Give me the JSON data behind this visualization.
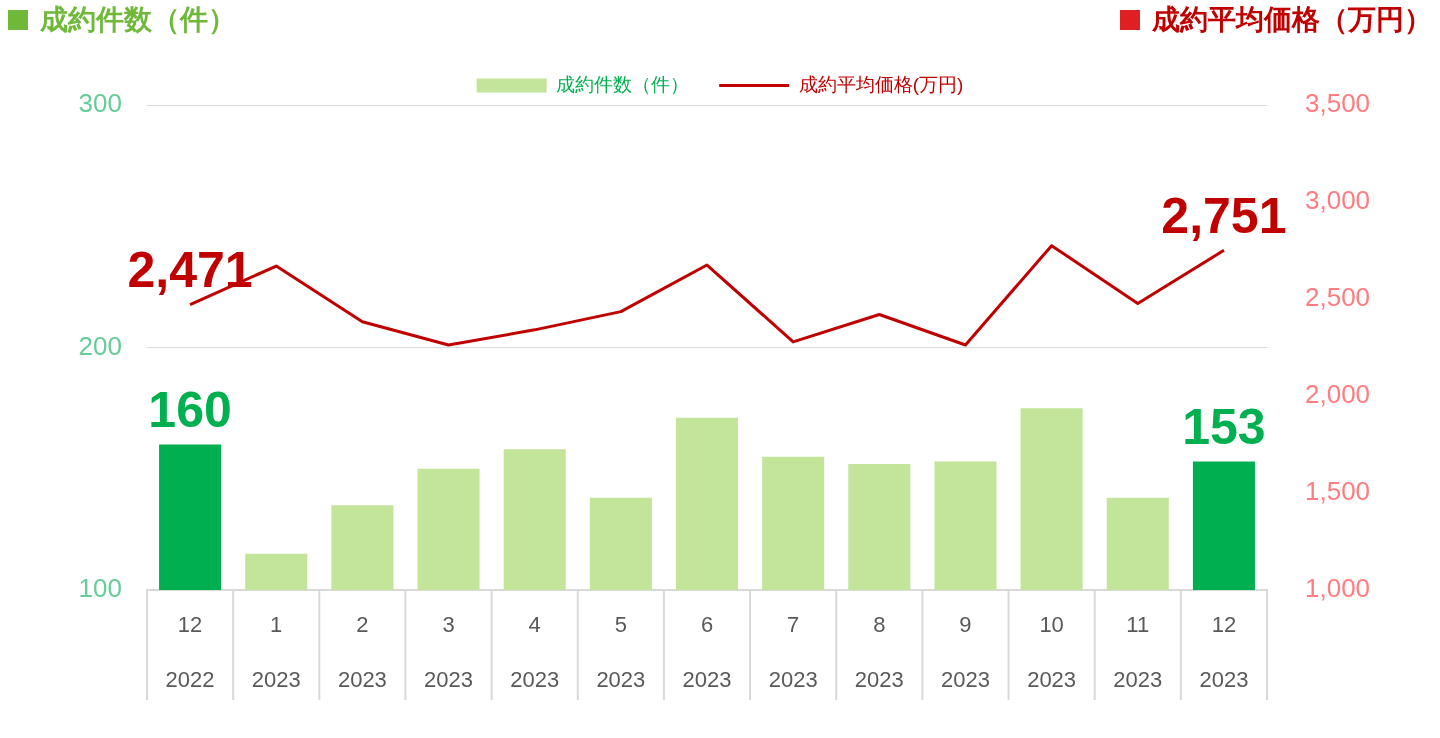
{
  "chart_data": {
    "type": "bar",
    "ylabel": "成約件数（件）",
    "y2label": "成約平均価格（万円）",
    "categories": [
      "12\n2022",
      "1\n2023",
      "2\n2023",
      "3\n2023",
      "4\n2023",
      "5\n2023",
      "6\n2023",
      "7\n2023",
      "8\n2023",
      "9\n2023",
      "10\n2023",
      "11\n2023",
      "12\n2023"
    ],
    "series": [
      {
        "name": "成約件数（件）",
        "color": "#c2e59a",
        "colors": [
          "#00b050",
          "#c2e59a",
          "#c2e59a",
          "#c2e59a",
          "#c2e59a",
          "#c2e59a",
          "#c2e59a",
          "#c2e59a",
          "#c2e59a",
          "#c2e59a",
          "#c2e59a",
          "#c2e59a",
          "#00b050"
        ],
        "values": [
          160,
          115,
          135,
          150,
          158,
          138,
          171,
          155,
          152,
          153,
          175,
          138,
          153
        ],
        "value_labels": [
          "160",
          null,
          null,
          null,
          null,
          null,
          null,
          null,
          null,
          null,
          null,
          null,
          "153"
        ]
      },
      {
        "type": "line",
        "name": "成約平均価格(万円)",
        "color": "#c00000",
        "axis": "y2",
        "values": [
          2471,
          2670,
          2383,
          2263,
          2341,
          2435,
          2675,
          2279,
          2420,
          2263,
          2775,
          2477,
          2751
        ],
        "value_labels": [
          "2,471",
          null,
          null,
          null,
          null,
          null,
          null,
          null,
          null,
          null,
          null,
          null,
          "2,751"
        ]
      }
    ],
    "ylim": [
      100,
      300
    ],
    "yticks": [
      100,
      200,
      300
    ],
    "y2lim": [
      1000,
      3500
    ],
    "y2ticks": [
      {
        "value": 1000,
        "label": "1,000"
      },
      {
        "value": 1500,
        "label": "1,500"
      },
      {
        "value": 2000,
        "label": "2,000"
      },
      {
        "value": 2500,
        "label": "2,500"
      },
      {
        "value": 3000,
        "label": "3,000"
      },
      {
        "value": 3500,
        "label": "3,500"
      }
    ],
    "grid": "y",
    "legend": "top"
  }
}
